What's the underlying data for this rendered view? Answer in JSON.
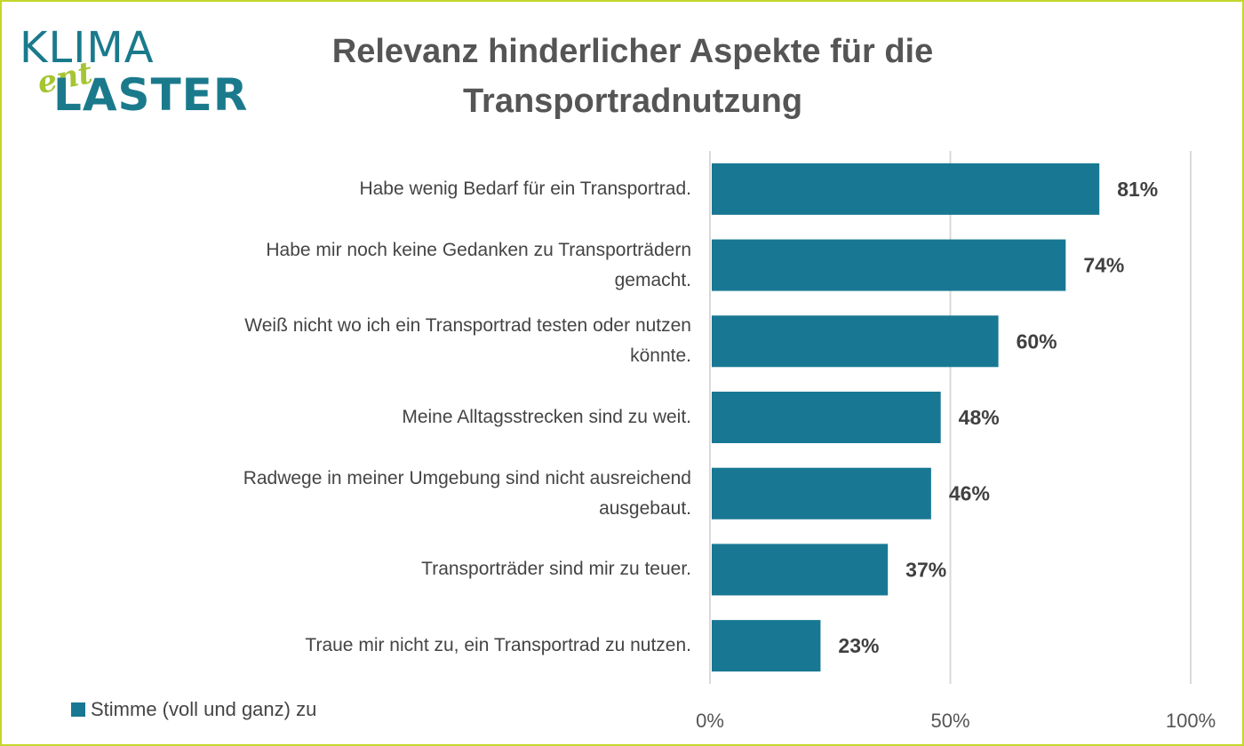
{
  "logo": {
    "line1": "KLIMA",
    "line2": "ent",
    "line3": "LASTER"
  },
  "chart_data": {
    "type": "bar",
    "orientation": "horizontal",
    "title": "Relevanz hinderlicher Aspekte für die Transportradnutzung",
    "title_lines": [
      "Relevanz hinderlicher Aspekte für die",
      "Transportradnutzung"
    ],
    "categories": [
      [
        "Habe wenig Bedarf für ein Transportrad."
      ],
      [
        "Habe mir noch keine Gedanken zu Transporträdern",
        "gemacht."
      ],
      [
        "Weiß nicht wo ich ein Transportrad testen oder nutzen",
        "könnte."
      ],
      [
        "Meine Alltagsstrecken sind zu weit."
      ],
      [
        "Radwege in meiner Umgebung sind nicht ausreichend",
        "ausgebaut."
      ],
      [
        "Transporträder sind mir zu teuer."
      ],
      [
        "Traue mir nicht zu, ein Transportrad zu nutzen."
      ]
    ],
    "series": [
      {
        "name": "Stimme (voll und ganz) zu",
        "values": [
          81,
          74,
          60,
          48,
          46,
          37,
          23
        ],
        "color": "#187893"
      }
    ],
    "data_labels": [
      "81%",
      "74%",
      "60%",
      "48%",
      "46%",
      "37%",
      "23%"
    ],
    "xlim": [
      0,
      100
    ],
    "x_ticks": [
      0,
      50,
      100
    ],
    "x_tick_labels": [
      "0%",
      "50%",
      "100%"
    ],
    "grid": true,
    "legend_position": "bottom-left"
  }
}
